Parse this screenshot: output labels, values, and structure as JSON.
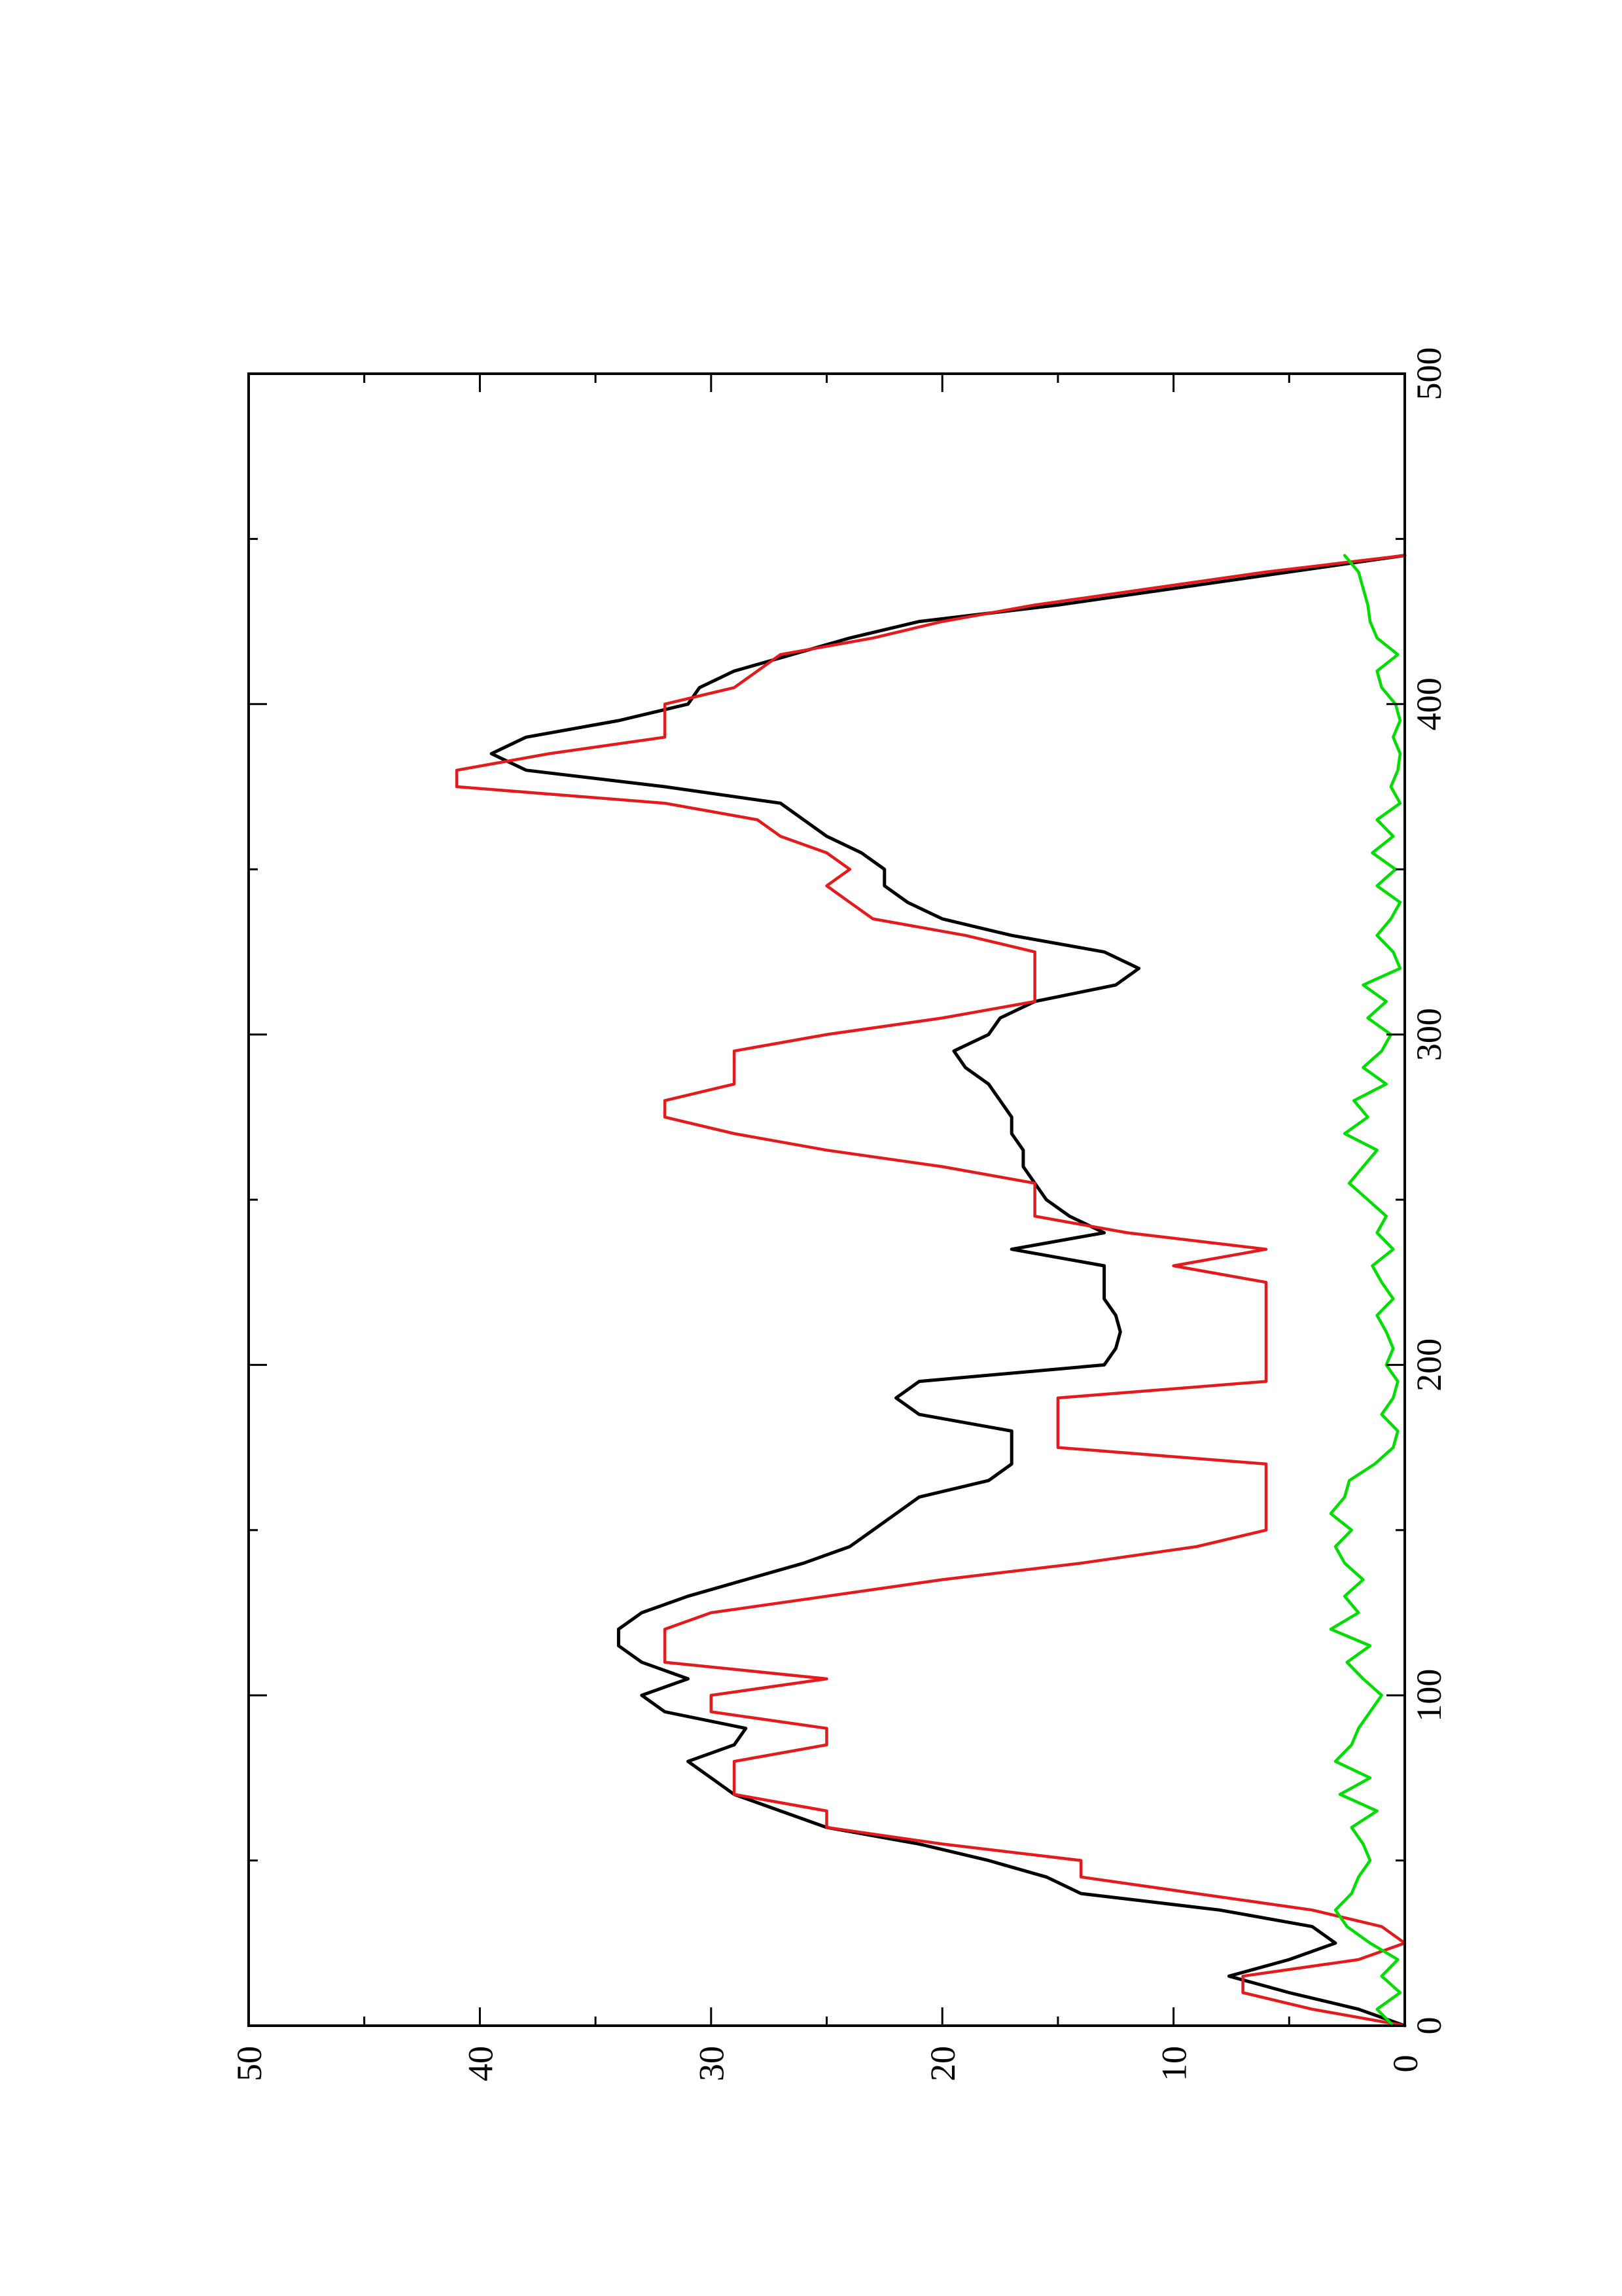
{
  "chart_data": {
    "type": "line",
    "orientation": "rotated-90-ccw",
    "title": "",
    "xlabel": "",
    "ylabel": "",
    "xlim": [
      0,
      500
    ],
    "ylim": [
      0,
      50
    ],
    "x_ticks": [
      0,
      100,
      200,
      300,
      400,
      500
    ],
    "x_minor_ticks": [
      50,
      150,
      250,
      350,
      450
    ],
    "y_ticks": [
      0,
      10,
      20,
      30,
      40,
      50
    ],
    "y_minor_ticks": [
      5,
      15,
      25,
      35,
      45
    ],
    "grid": false,
    "legend": "none",
    "series": [
      {
        "color": "#000000",
        "style": "smooth",
        "points": [
          [
            0,
            0
          ],
          [
            5,
            2
          ],
          [
            10,
            5
          ],
          [
            15,
            7.6
          ],
          [
            20,
            5
          ],
          [
            25,
            3
          ],
          [
            30,
            4
          ],
          [
            35,
            8
          ],
          [
            40,
            14
          ],
          [
            45,
            15.5
          ],
          [
            50,
            18
          ],
          [
            55,
            21
          ],
          [
            60,
            25
          ],
          [
            65,
            27
          ],
          [
            70,
            29
          ],
          [
            75,
            30
          ],
          [
            80,
            31
          ],
          [
            85,
            29
          ],
          [
            90,
            28.5
          ],
          [
            95,
            32
          ],
          [
            100,
            33
          ],
          [
            105,
            31
          ],
          [
            110,
            33
          ],
          [
            115,
            34
          ],
          [
            120,
            34
          ],
          [
            125,
            33
          ],
          [
            130,
            31
          ],
          [
            135,
            28.5
          ],
          [
            140,
            26
          ],
          [
            145,
            24
          ],
          [
            150,
            23
          ],
          [
            155,
            22
          ],
          [
            160,
            21
          ],
          [
            165,
            18
          ],
          [
            170,
            17
          ],
          [
            175,
            17
          ],
          [
            180,
            17
          ],
          [
            185,
            21
          ],
          [
            190,
            22
          ],
          [
            195,
            21
          ],
          [
            200,
            13
          ],
          [
            205,
            12.5
          ],
          [
            210,
            12.3
          ],
          [
            215,
            12.5
          ],
          [
            220,
            13
          ],
          [
            225,
            13
          ],
          [
            230,
            13
          ],
          [
            235,
            17
          ],
          [
            240,
            13
          ],
          [
            245,
            14.5
          ],
          [
            250,
            15.5
          ],
          [
            255,
            16
          ],
          [
            260,
            16.5
          ],
          [
            265,
            16.5
          ],
          [
            270,
            17
          ],
          [
            275,
            17
          ],
          [
            280,
            17.5
          ],
          [
            285,
            18
          ],
          [
            290,
            19
          ],
          [
            295,
            19.5
          ],
          [
            300,
            18
          ],
          [
            305,
            17.5
          ],
          [
            310,
            16
          ],
          [
            315,
            12.5
          ],
          [
            320,
            11.5
          ],
          [
            325,
            13
          ],
          [
            330,
            17
          ],
          [
            335,
            20
          ],
          [
            340,
            21.5
          ],
          [
            345,
            22.5
          ],
          [
            350,
            22.5
          ],
          [
            355,
            23.5
          ],
          [
            360,
            25
          ],
          [
            365,
            26
          ],
          [
            370,
            27
          ],
          [
            375,
            32
          ],
          [
            380,
            38
          ],
          [
            385,
            39.5
          ],
          [
            390,
            38
          ],
          [
            395,
            34
          ],
          [
            400,
            31
          ],
          [
            405,
            30.5
          ],
          [
            410,
            29
          ],
          [
            415,
            26.5
          ],
          [
            420,
            24
          ],
          [
            425,
            21
          ],
          [
            430,
            15
          ],
          [
            435,
            10
          ],
          [
            440,
            5
          ],
          [
            445,
            0
          ]
        ]
      },
      {
        "color": "#e41a1c",
        "style": "step",
        "points": [
          [
            0,
            0
          ],
          [
            5,
            4
          ],
          [
            10,
            7
          ],
          [
            15,
            7
          ],
          [
            20,
            2
          ],
          [
            25,
            0
          ],
          [
            30,
            1
          ],
          [
            35,
            4
          ],
          [
            40,
            9
          ],
          [
            45,
            14
          ],
          [
            50,
            14
          ],
          [
            55,
            20
          ],
          [
            60,
            25
          ],
          [
            65,
            25
          ],
          [
            70,
            29
          ],
          [
            75,
            29
          ],
          [
            80,
            29
          ],
          [
            85,
            25
          ],
          [
            90,
            25
          ],
          [
            95,
            30
          ],
          [
            100,
            30
          ],
          [
            105,
            25
          ],
          [
            110,
            32
          ],
          [
            115,
            32
          ],
          [
            120,
            32
          ],
          [
            125,
            30
          ],
          [
            130,
            25
          ],
          [
            135,
            20
          ],
          [
            140,
            14
          ],
          [
            145,
            9
          ],
          [
            150,
            6
          ],
          [
            155,
            6
          ],
          [
            160,
            6
          ],
          [
            165,
            6
          ],
          [
            170,
            6
          ],
          [
            175,
            15
          ],
          [
            180,
            15
          ],
          [
            185,
            15
          ],
          [
            190,
            15
          ],
          [
            195,
            6
          ],
          [
            200,
            6
          ],
          [
            205,
            6
          ],
          [
            210,
            6
          ],
          [
            215,
            6
          ],
          [
            220,
            6
          ],
          [
            225,
            6
          ],
          [
            230,
            10
          ],
          [
            235,
            6
          ],
          [
            240,
            12
          ],
          [
            245,
            16
          ],
          [
            250,
            16
          ],
          [
            255,
            16
          ],
          [
            260,
            20
          ],
          [
            265,
            25
          ],
          [
            270,
            29
          ],
          [
            275,
            32
          ],
          [
            280,
            32
          ],
          [
            285,
            29
          ],
          [
            290,
            29
          ],
          [
            295,
            29
          ],
          [
            300,
            25
          ],
          [
            305,
            20
          ],
          [
            310,
            16
          ],
          [
            315,
            16
          ],
          [
            320,
            16
          ],
          [
            325,
            16
          ],
          [
            330,
            19
          ],
          [
            335,
            23
          ],
          [
            340,
            24
          ],
          [
            345,
            25
          ],
          [
            350,
            24
          ],
          [
            355,
            25
          ],
          [
            360,
            27
          ],
          [
            365,
            28
          ],
          [
            370,
            32
          ],
          [
            375,
            41
          ],
          [
            380,
            41
          ],
          [
            385,
            37
          ],
          [
            390,
            32
          ],
          [
            395,
            32
          ],
          [
            400,
            32
          ],
          [
            405,
            29
          ],
          [
            410,
            28
          ],
          [
            415,
            27
          ],
          [
            420,
            23
          ],
          [
            425,
            20
          ],
          [
            430,
            16
          ],
          [
            435,
            11
          ],
          [
            440,
            6
          ],
          [
            445,
            0
          ]
        ]
      },
      {
        "color": "#00dd00",
        "style": "noisy",
        "points": [
          [
            0,
            0.5
          ],
          [
            5,
            1.2
          ],
          [
            10,
            0.2
          ],
          [
            15,
            1.0
          ],
          [
            20,
            0.3
          ],
          [
            25,
            1.5
          ],
          [
            30,
            2.5
          ],
          [
            35,
            3.0
          ],
          [
            40,
            2.3
          ],
          [
            45,
            2.0
          ],
          [
            50,
            1.5
          ],
          [
            55,
            1.8
          ],
          [
            60,
            2.3
          ],
          [
            65,
            1.2
          ],
          [
            70,
            2.8
          ],
          [
            75,
            1.5
          ],
          [
            80,
            3.0
          ],
          [
            85,
            2.3
          ],
          [
            90,
            2.0
          ],
          [
            95,
            1.5
          ],
          [
            100,
            1.0
          ],
          [
            105,
            1.8
          ],
          [
            110,
            2.5
          ],
          [
            115,
            1.5
          ],
          [
            120,
            3.2
          ],
          [
            125,
            2.0
          ],
          [
            130,
            2.6
          ],
          [
            135,
            1.8
          ],
          [
            140,
            2.6
          ],
          [
            145,
            3.0
          ],
          [
            150,
            2.3
          ],
          [
            155,
            3.2
          ],
          [
            160,
            2.6
          ],
          [
            165,
            2.4
          ],
          [
            170,
            1.3
          ],
          [
            175,
            0.5
          ],
          [
            180,
            0.3
          ],
          [
            185,
            1.0
          ],
          [
            190,
            0.5
          ],
          [
            195,
            0.3
          ],
          [
            200,
            0.8
          ],
          [
            205,
            0.5
          ],
          [
            210,
            0.8
          ],
          [
            215,
            1.2
          ],
          [
            220,
            0.5
          ],
          [
            225,
            1.0
          ],
          [
            230,
            1.4
          ],
          [
            235,
            0.5
          ],
          [
            240,
            1.2
          ],
          [
            245,
            0.8
          ],
          [
            250,
            1.6
          ],
          [
            255,
            2.4
          ],
          [
            260,
            1.8
          ],
          [
            265,
            1.2
          ],
          [
            270,
            2.6
          ],
          [
            275,
            1.6
          ],
          [
            280,
            2.2
          ],
          [
            285,
            0.8
          ],
          [
            290,
            1.8
          ],
          [
            295,
            1.0
          ],
          [
            300,
            0.6
          ],
          [
            305,
            1.6
          ],
          [
            310,
            0.8
          ],
          [
            315,
            1.8
          ],
          [
            320,
            0.2
          ],
          [
            325,
            0.5
          ],
          [
            330,
            1.2
          ],
          [
            335,
            0.6
          ],
          [
            340,
            0.2
          ],
          [
            345,
            1.2
          ],
          [
            350,
            0.4
          ],
          [
            355,
            1.4
          ],
          [
            360,
            0.5
          ],
          [
            365,
            1.2
          ],
          [
            370,
            0.2
          ],
          [
            375,
            0.6
          ],
          [
            380,
            0.3
          ],
          [
            385,
            0.2
          ],
          [
            390,
            0.5
          ],
          [
            395,
            0.2
          ],
          [
            400,
            0.4
          ],
          [
            405,
            1.0
          ],
          [
            410,
            1.2
          ],
          [
            415,
            0.3
          ],
          [
            420,
            1.2
          ],
          [
            425,
            1.5
          ],
          [
            430,
            1.6
          ],
          [
            435,
            1.8
          ],
          [
            440,
            2.0
          ],
          [
            445,
            2.6
          ]
        ]
      }
    ]
  }
}
